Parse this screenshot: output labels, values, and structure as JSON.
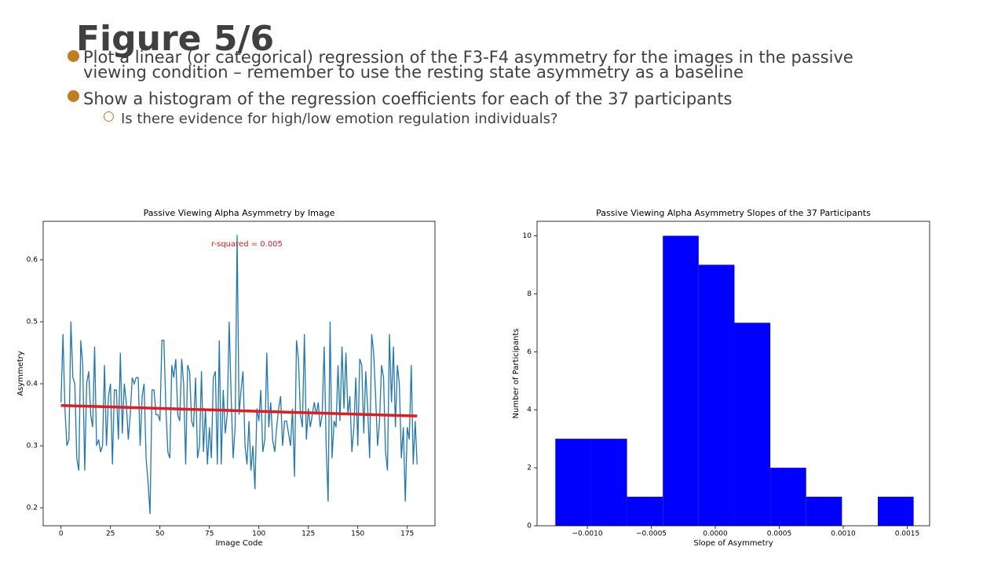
{
  "header": {
    "title": "Figure 5/6"
  },
  "bullets": [
    {
      "text": "Plot a linear (or categorical) regression of the F3-F4 asymmetry for the images in the passive viewing condition – remember to use the resting state asymmetry as a baseline"
    },
    {
      "text": "Show a histogram of the regression coefficients for each of the 37 participants",
      "sub": [
        "Is there evidence for high/low emotion regulation individuals?"
      ]
    }
  ],
  "chart_data": [
    {
      "type": "line",
      "title": "Passive Viewing Alpha Asymmetry by Image",
      "xlabel": "Image Code",
      "ylabel": "Asymmetry",
      "annotation": "r-squared = 0.005",
      "x": [
        0,
        1,
        2,
        3,
        4,
        5,
        6,
        7,
        8,
        9,
        10,
        11,
        12,
        13,
        14,
        15,
        16,
        17,
        18,
        19,
        20,
        21,
        22,
        23,
        24,
        25,
        26,
        27,
        28,
        29,
        30,
        31,
        32,
        33,
        34,
        35,
        36,
        37,
        38,
        39,
        40,
        41,
        42,
        43,
        44,
        45,
        46,
        47,
        48,
        49,
        50,
        51,
        52,
        53,
        54,
        55,
        56,
        57,
        58,
        59,
        60,
        61,
        62,
        63,
        64,
        65,
        66,
        67,
        68,
        69,
        70,
        71,
        72,
        73,
        74,
        75,
        76,
        77,
        78,
        79,
        80,
        81,
        82,
        83,
        84,
        85,
        86,
        87,
        88,
        89,
        90,
        91,
        92,
        93,
        94,
        95,
        96,
        97,
        98,
        99,
        100,
        101,
        102,
        103,
        104,
        105,
        106,
        107,
        108,
        109,
        110,
        111,
        112,
        113,
        114,
        115,
        116,
        117,
        118,
        119,
        120,
        121,
        122,
        123,
        124,
        125,
        126,
        127,
        128,
        129,
        130,
        131,
        132,
        133,
        134,
        135,
        136,
        137,
        138,
        139,
        140,
        141,
        142,
        143,
        144,
        145,
        146,
        147,
        148,
        149,
        150,
        151,
        152,
        153,
        154,
        155,
        156,
        157,
        158,
        159,
        160,
        161,
        162,
        163,
        164,
        165,
        166,
        167,
        168,
        169,
        170,
        171,
        172,
        173,
        174,
        175,
        176,
        177,
        178,
        179,
        180
      ],
      "series": [
        {
          "color": "#1f77b4",
          "values": [
            0.37,
            0.48,
            0.36,
            0.3,
            0.31,
            0.5,
            0.41,
            0.4,
            0.28,
            0.26,
            0.47,
            0.43,
            0.26,
            0.4,
            0.42,
            0.35,
            0.33,
            0.46,
            0.3,
            0.31,
            0.29,
            0.3,
            0.43,
            0.3,
            0.38,
            0.4,
            0.27,
            0.39,
            0.39,
            0.31,
            0.45,
            0.32,
            0.4,
            0.37,
            0.31,
            0.35,
            0.41,
            0.4,
            0.41,
            0.41,
            0.3,
            0.38,
            0.4,
            0.28,
            0.24,
            0.19,
            0.39,
            0.39,
            0.35,
            0.35,
            0.34,
            0.47,
            0.47,
            0.36,
            0.29,
            0.28,
            0.43,
            0.41,
            0.44,
            0.35,
            0.34,
            0.44,
            0.4,
            0.27,
            0.43,
            0.42,
            0.34,
            0.33,
            0.41,
            0.28,
            0.3,
            0.42,
            0.29,
            0.36,
            0.27,
            0.33,
            0.28,
            0.41,
            0.42,
            0.27,
            0.47,
            0.27,
            0.39,
            0.32,
            0.35,
            0.5,
            0.38,
            0.28,
            0.33,
            0.64,
            0.35,
            0.39,
            0.42,
            0.3,
            0.27,
            0.34,
            0.26,
            0.3,
            0.23,
            0.36,
            0.34,
            0.39,
            0.29,
            0.31,
            0.45,
            0.33,
            0.37,
            0.31,
            0.29,
            0.33,
            0.36,
            0.38,
            0.3,
            0.34,
            0.34,
            0.32,
            0.3,
            0.36,
            0.25,
            0.47,
            0.44,
            0.35,
            0.33,
            0.48,
            0.31,
            0.36,
            0.33,
            0.35,
            0.37,
            0.35,
            0.37,
            0.33,
            0.35,
            0.46,
            0.3,
            0.21,
            0.5,
            0.28,
            0.34,
            0.33,
            0.43,
            0.34,
            0.46,
            0.36,
            0.45,
            0.35,
            0.38,
            0.29,
            0.33,
            0.41,
            0.3,
            0.44,
            0.43,
            0.32,
            0.42,
            0.36,
            0.28,
            0.48,
            0.45,
            0.38,
            0.3,
            0.34,
            0.43,
            0.41,
            0.29,
            0.26,
            0.48,
            0.37,
            0.46,
            0.33,
            0.43,
            0.4,
            0.28,
            0.33,
            0.21,
            0.33,
            0.31,
            0.43,
            0.27,
            0.34,
            0.27
          ]
        }
      ],
      "fit": {
        "color": "#e41a1c",
        "x": [
          0,
          180
        ],
        "values": [
          0.365,
          0.348
        ]
      },
      "xlim": [
        -9,
        189
      ],
      "ylim": [
        0.171,
        0.662
      ],
      "xticks": [
        0,
        25,
        50,
        75,
        100,
        125,
        150,
        175
      ],
      "yticks": [
        0.2,
        0.3,
        0.4,
        0.5,
        0.6
      ]
    },
    {
      "type": "histogram",
      "title": "Passive Viewing Alpha Asymmetry Slopes of the 37 Participants",
      "xlabel": "Slope of Asymmetry",
      "ylabel": "Number of Participants",
      "color": "#0000ff",
      "bins": [
        -0.00125,
        -0.00097,
        -0.00069,
        -0.00041,
        -0.00013,
        0.00015,
        0.00043,
        0.00071,
        0.00099,
        0.00127,
        0.00155
      ],
      "values": [
        3,
        3,
        1,
        10,
        9,
        7,
        2,
        1,
        0,
        1
      ],
      "xlim": [
        -0.001393,
        0.001675
      ],
      "ylim": [
        0,
        10.5
      ],
      "xticks": [
        {
          "value": -0.001,
          "label": "−0.0010"
        },
        {
          "value": -0.0005,
          "label": "−0.0005"
        },
        {
          "value": 0,
          "label": "0.0000"
        },
        {
          "value": 0.0005,
          "label": "0.0005"
        },
        {
          "value": 0.001,
          "label": "0.0010"
        },
        {
          "value": 0.0015,
          "label": "0.0015"
        }
      ],
      "yticks": [
        0,
        2,
        4,
        6,
        8,
        10
      ]
    }
  ]
}
